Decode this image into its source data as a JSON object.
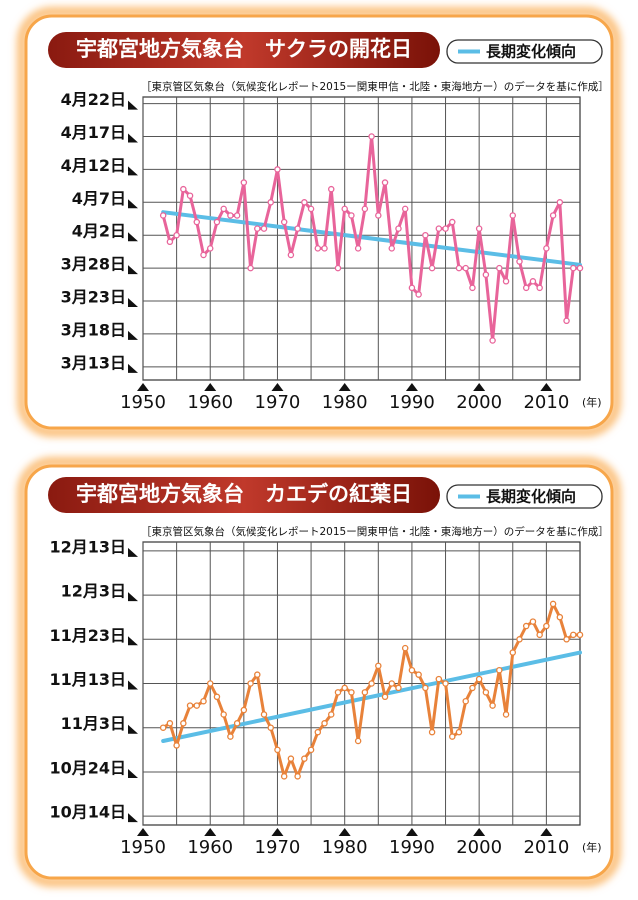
{
  "chart_data": [
    {
      "type": "line",
      "title": "宇都宮地方気象台　サクラの開花日",
      "source": "［東京管区気象台（気候変化レポート2015ー関東甲信・北陸・東海地方ー）のデータを基に作成］",
      "x_label": "(年)",
      "x": [
        1953,
        1954,
        1955,
        1956,
        1957,
        1958,
        1959,
        1960,
        1961,
        1962,
        1963,
        1964,
        1965,
        1966,
        1967,
        1968,
        1969,
        1970,
        1971,
        1972,
        1973,
        1974,
        1975,
        1976,
        1977,
        1978,
        1979,
        1980,
        1981,
        1982,
        1983,
        1984,
        1985,
        1986,
        1987,
        1988,
        1989,
        1990,
        1991,
        1992,
        1993,
        1994,
        1995,
        1996,
        1997,
        1998,
        1999,
        2000,
        2001,
        2002,
        2003,
        2004,
        2005,
        2006,
        2007,
        2008,
        2009,
        2010,
        2011,
        2012,
        2013,
        2014,
        2015
      ],
      "series": [
        {
          "color": "#e8649a",
          "values": [
            95,
            91,
            92,
            99,
            98,
            94,
            89,
            90,
            94,
            96,
            95,
            95,
            100,
            87,
            93,
            93,
            97,
            102,
            94,
            89,
            93,
            97,
            96,
            90,
            90,
            99,
            87,
            96,
            95,
            90,
            96,
            107,
            95,
            100,
            90,
            93,
            96,
            84,
            83,
            92,
            87,
            93,
            93,
            94,
            87,
            87,
            84,
            93,
            86,
            76,
            87,
            85,
            95,
            88,
            84,
            85,
            84,
            90,
            95,
            97,
            79,
            87,
            87
          ]
        }
      ],
      "trend": {
        "name": "長期変化傾向",
        "color": "#5bbde6",
        "x": [
          1953,
          2015
        ],
        "values": [
          95.5,
          87.5
        ]
      },
      "xlim": [
        1950,
        2015
      ],
      "xticks": [
        1950,
        1960,
        1970,
        1980,
        1990,
        2000,
        2010
      ],
      "ylim": [
        70,
        113
      ],
      "yticks": [
        {
          "value": 72,
          "label": "3月13日"
        },
        {
          "value": 77,
          "label": "3月18日"
        },
        {
          "value": 82,
          "label": "3月23日"
        },
        {
          "value": 87,
          "label": "3月28日"
        },
        {
          "value": 92,
          "label": "4月2日"
        },
        {
          "value": 97,
          "label": "4月7日"
        },
        {
          "value": 102,
          "label": "4月12日"
        },
        {
          "value": 107,
          "label": "4月17日"
        },
        {
          "value": 112,
          "label": "4月22日"
        }
      ],
      "grid": true
    },
    {
      "type": "line",
      "title": "宇都宮地方気象台　カエデの紅葉日",
      "source": "［東京管区気象台（気候変化レポート2015ー関東甲信・北陸・東海地方ー）のデータを基に作成］",
      "x_label": "(年)",
      "x": [
        1953,
        1954,
        1955,
        1956,
        1957,
        1958,
        1959,
        1960,
        1961,
        1962,
        1963,
        1964,
        1965,
        1966,
        1967,
        1968,
        1969,
        1970,
        1971,
        1972,
        1973,
        1974,
        1975,
        1976,
        1977,
        1978,
        1979,
        1980,
        1981,
        1982,
        1983,
        1984,
        1985,
        1986,
        1987,
        1988,
        1989,
        1990,
        1991,
        1992,
        1993,
        1994,
        1995,
        1996,
        1997,
        1998,
        1999,
        2000,
        2001,
        2002,
        2003,
        2004,
        2005,
        2006,
        2007,
        2008,
        2009,
        2010,
        2011,
        2012,
        2013,
        2014,
        2015
      ],
      "series": [
        {
          "color": "#e8823a",
          "values": [
            307,
            308,
            303,
            308,
            312,
            312,
            313,
            317,
            314,
            310,
            305,
            308,
            311,
            317,
            319,
            310,
            307,
            302,
            296,
            300,
            296,
            300,
            302,
            306,
            308,
            310,
            315,
            316,
            315,
            304,
            315,
            317,
            321,
            314,
            317,
            316,
            325,
            320,
            319,
            316,
            306,
            318,
            317,
            305,
            306,
            313,
            316,
            318,
            315,
            312,
            320,
            310,
            324,
            327,
            330,
            331,
            328,
            330,
            335,
            332,
            327,
            328,
            328
          ]
        }
      ],
      "trend": {
        "name": "長期変化傾向",
        "color": "#5bbde6",
        "x": [
          1953,
          2015
        ],
        "values": [
          304,
          324
        ]
      },
      "xlim": [
        1950,
        2015
      ],
      "xticks": [
        1950,
        1960,
        1970,
        1980,
        1990,
        2000,
        2010
      ],
      "ylim": [
        285,
        349
      ],
      "yticks": [
        {
          "value": 287,
          "label": "10月14日"
        },
        {
          "value": 297,
          "label": "10月24日"
        },
        {
          "value": 307,
          "label": "11月3日"
        },
        {
          "value": 317,
          "label": "11月13日"
        },
        {
          "value": 327,
          "label": "11月23日"
        },
        {
          "value": 337,
          "label": "12月3日"
        },
        {
          "value": 347,
          "label": "12月13日"
        }
      ],
      "grid": true
    }
  ]
}
